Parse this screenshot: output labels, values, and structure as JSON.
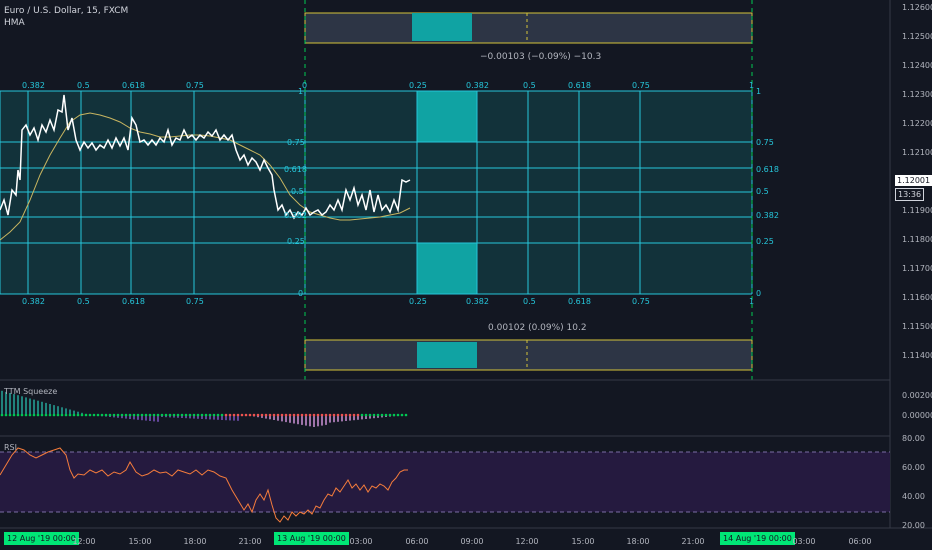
{
  "header": {
    "symbol": "Euro / U.S. Dollar, 15, FXCM",
    "indicator": "HMA"
  },
  "price_axis": {
    "ticks": [
      "1.12600",
      "1.12500",
      "1.12400",
      "1.12300",
      "1.12200",
      "1.12100",
      "1.11900",
      "1.11800",
      "1.11700",
      "1.11600",
      "1.11500",
      "1.11400"
    ],
    "current_price": "1.12001",
    "countdown": "13:36"
  },
  "measure": {
    "top_label": "−0.00103 (−0.09%) −10.3",
    "bottom_label": "0.00102 (0.09%) 10.2"
  },
  "fib_left": {
    "top_labels": [
      "0.382",
      "0.5",
      "0.618",
      "0.75",
      "0"
    ],
    "bottom_labels": [
      "0.382",
      "0.5",
      "0.618",
      "0.75"
    ],
    "side_labels": [
      "1",
      "0.75",
      "0.618",
      "0.5",
      "0.382",
      "0.25",
      "0"
    ]
  },
  "fib_right": {
    "top_labels": [
      "0.25",
      "0.382",
      "0.5",
      "0.618",
      "0.75",
      "1"
    ],
    "bottom_labels": [
      "0.25",
      "0.382",
      "0.5",
      "0.618",
      "0.75",
      "1"
    ],
    "side_labels": [
      "1",
      "0.75",
      "0.618",
      "0.5",
      "0.382",
      "0.25",
      "0"
    ]
  },
  "ttm": {
    "title": "TTM Squeeze",
    "ticks": [
      "0.00200",
      "0.00000"
    ]
  },
  "rsi": {
    "title": "RSI",
    "ticks": [
      "80.00",
      "60.00",
      "40.00",
      "20.00"
    ]
  },
  "time_axis": {
    "ticks": [
      "12:00",
      "15:00",
      "18:00",
      "21:00",
      "03:00",
      "06:00",
      "09:00",
      "12:00",
      "15:00",
      "18:00",
      "21:00",
      "03:00",
      "06:00"
    ],
    "highlights": [
      "12 Aug '19   00:00",
      "13 Aug '19   00:00",
      "14 Aug '19   00:00"
    ]
  },
  "colors": {
    "background": "#131722",
    "fib_line": "#26c6da",
    "fib_fill": "#12323a",
    "box_fill": "#10a3a3",
    "price_line": "#ffffff",
    "hma_line": "#c8b560",
    "rsi_line": "#f57c3c",
    "rsi_band": "#251a3f",
    "measure_fill": "#2d3545",
    "measure_edge": "#d4c33a",
    "time_highlight": "#00e676"
  }
}
